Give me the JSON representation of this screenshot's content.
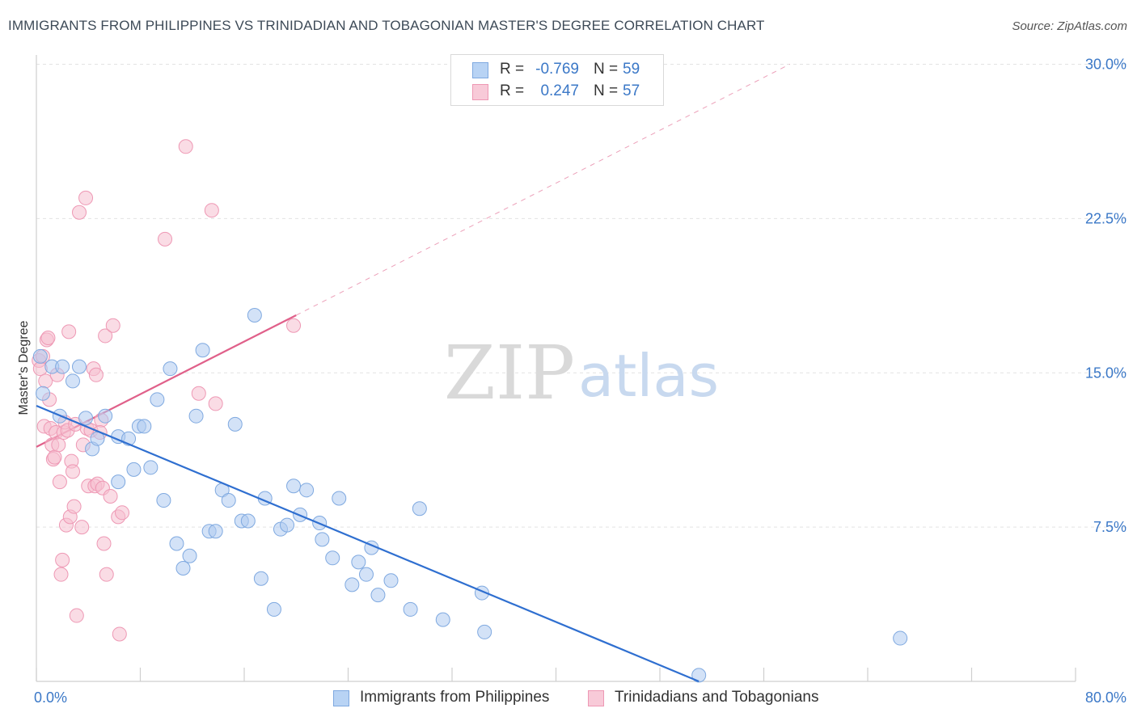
{
  "title": "IMMIGRANTS FROM PHILIPPINES VS TRINIDADIAN AND TOBAGONIAN MASTER'S DEGREE CORRELATION CHART",
  "source": "Source: ZipAtlas.com",
  "watermark": {
    "zip": "ZIP",
    "atlas": "atlas"
  },
  "legend": {
    "rows": [
      {
        "r_label": "R =",
        "r_value": "-0.769",
        "n_label": "N =",
        "n_value": "59"
      },
      {
        "r_label": "R =",
        "r_value": "0.247",
        "n_label": "N =",
        "n_value": "57"
      }
    ]
  },
  "colors": {
    "blue_fill": "#aecbf0",
    "blue_stroke": "#7fa9e0",
    "blue_line": "#2f6fd0",
    "pink_fill": "#f6c0d0",
    "pink_stroke": "#ee98b4",
    "pink_line": "#e0608a",
    "tick_text": "#3b78c7",
    "grid": "#e3e3e3"
  },
  "chart_data": {
    "type": "scatter",
    "title": "IMMIGRANTS FROM PHILIPPINES VS TRINIDADIAN AND TOBAGONIAN MASTER'S DEGREE CORRELATION CHART",
    "xlabel": "",
    "ylabel": "Master's Degree",
    "xlim": [
      0,
      80
    ],
    "ylim": [
      0,
      30.5
    ],
    "x_tick_labels": [
      "0.0%",
      "80.0%"
    ],
    "y_ticks": [
      7.5,
      15.0,
      22.5,
      30.0
    ],
    "y_tick_labels": [
      "7.5%",
      "15.0%",
      "22.5%",
      "30.0%"
    ],
    "grid": true,
    "legend_position": "top-center",
    "series": [
      {
        "name": "Immigrants from Philippines",
        "color": "#aecbf0",
        "trend": {
          "x": [
            0,
            51
          ],
          "y": [
            13.4,
            0
          ]
        },
        "points": [
          [
            0.3,
            15.8
          ],
          [
            0.5,
            14.0
          ],
          [
            1.2,
            15.3
          ],
          [
            1.8,
            12.9
          ],
          [
            2.8,
            14.6
          ],
          [
            3.3,
            15.3
          ],
          [
            3.8,
            12.8
          ],
          [
            4.3,
            11.3
          ],
          [
            4.7,
            11.8
          ],
          [
            5.3,
            12.9
          ],
          [
            6.3,
            11.9
          ],
          [
            6.3,
            9.7
          ],
          [
            7.1,
            11.8
          ],
          [
            7.5,
            10.3
          ],
          [
            7.9,
            12.4
          ],
          [
            8.3,
            12.4
          ],
          [
            8.8,
            10.4
          ],
          [
            9.3,
            13.7
          ],
          [
            9.8,
            8.8
          ],
          [
            10.3,
            15.2
          ],
          [
            10.8,
            6.7
          ],
          [
            11.3,
            5.5
          ],
          [
            11.8,
            6.1
          ],
          [
            12.3,
            12.9
          ],
          [
            12.8,
            16.1
          ],
          [
            13.3,
            7.3
          ],
          [
            13.8,
            7.3
          ],
          [
            14.3,
            9.3
          ],
          [
            14.8,
            8.8
          ],
          [
            15.3,
            12.5
          ],
          [
            15.8,
            7.8
          ],
          [
            16.3,
            7.8
          ],
          [
            16.8,
            17.8
          ],
          [
            17.3,
            5.0
          ],
          [
            17.6,
            8.9
          ],
          [
            18.3,
            3.5
          ],
          [
            18.8,
            7.4
          ],
          [
            19.3,
            7.6
          ],
          [
            19.8,
            9.5
          ],
          [
            20.3,
            8.1
          ],
          [
            20.8,
            9.3
          ],
          [
            21.8,
            7.7
          ],
          [
            22.0,
            6.9
          ],
          [
            22.8,
            6.0
          ],
          [
            23.3,
            8.9
          ],
          [
            24.3,
            4.7
          ],
          [
            24.8,
            5.8
          ],
          [
            25.4,
            5.2
          ],
          [
            25.8,
            6.5
          ],
          [
            26.3,
            4.2
          ],
          [
            27.3,
            4.9
          ],
          [
            28.8,
            3.5
          ],
          [
            29.5,
            8.4
          ],
          [
            31.3,
            3.0
          ],
          [
            34.3,
            4.3
          ],
          [
            34.5,
            2.4
          ],
          [
            51.0,
            0.3
          ],
          [
            66.5,
            2.1
          ],
          [
            2.0,
            15.3
          ]
        ]
      },
      {
        "name": "Trinidadians and Tobagonians",
        "color": "#f6c0d0",
        "trend": {
          "x": [
            0,
            20
          ],
          "y": [
            11.4,
            17.8
          ],
          "extended_x": [
            20,
            58
          ],
          "extended_y": [
            17.8,
            30.0
          ]
        },
        "points": [
          [
            0.2,
            15.6
          ],
          [
            0.3,
            15.2
          ],
          [
            0.5,
            15.8
          ],
          [
            0.6,
            12.4
          ],
          [
            0.7,
            14.6
          ],
          [
            0.8,
            16.6
          ],
          [
            0.9,
            16.7
          ],
          [
            1.0,
            13.7
          ],
          [
            1.1,
            12.3
          ],
          [
            1.2,
            11.5
          ],
          [
            1.3,
            10.8
          ],
          [
            1.4,
            10.9
          ],
          [
            1.5,
            12.1
          ],
          [
            1.6,
            14.9
          ],
          [
            1.7,
            11.5
          ],
          [
            1.8,
            9.7
          ],
          [
            1.9,
            5.2
          ],
          [
            2.0,
            5.9
          ],
          [
            2.1,
            12.1
          ],
          [
            2.2,
            12.6
          ],
          [
            2.3,
            7.6
          ],
          [
            2.4,
            12.2
          ],
          [
            2.5,
            17.0
          ],
          [
            2.6,
            8.0
          ],
          [
            2.7,
            10.7
          ],
          [
            2.8,
            10.2
          ],
          [
            2.9,
            8.5
          ],
          [
            3.0,
            12.5
          ],
          [
            3.1,
            3.2
          ],
          [
            3.3,
            22.8
          ],
          [
            3.5,
            7.5
          ],
          [
            3.6,
            11.5
          ],
          [
            3.8,
            23.5
          ],
          [
            3.9,
            12.3
          ],
          [
            4.0,
            9.5
          ],
          [
            4.2,
            12.2
          ],
          [
            4.4,
            15.2
          ],
          [
            4.5,
            9.5
          ],
          [
            4.6,
            14.9
          ],
          [
            4.7,
            9.6
          ],
          [
            5.0,
            12.7
          ],
          [
            5.1,
            9.4
          ],
          [
            5.2,
            6.7
          ],
          [
            5.3,
            16.8
          ],
          [
            5.4,
            5.2
          ],
          [
            5.7,
            9.0
          ],
          [
            5.9,
            17.3
          ],
          [
            6.3,
            8.0
          ],
          [
            6.4,
            2.3
          ],
          [
            6.6,
            8.2
          ],
          [
            9.9,
            21.5
          ],
          [
            11.5,
            26.0
          ],
          [
            12.5,
            14.0
          ],
          [
            13.5,
            22.9
          ],
          [
            13.8,
            13.5
          ],
          [
            19.8,
            17.3
          ],
          [
            4.9,
            12.1
          ]
        ]
      }
    ]
  },
  "bottom_legend": [
    {
      "label": "Immigrants from Philippines"
    },
    {
      "label": "Trinidadians and Tobagonians"
    }
  ]
}
